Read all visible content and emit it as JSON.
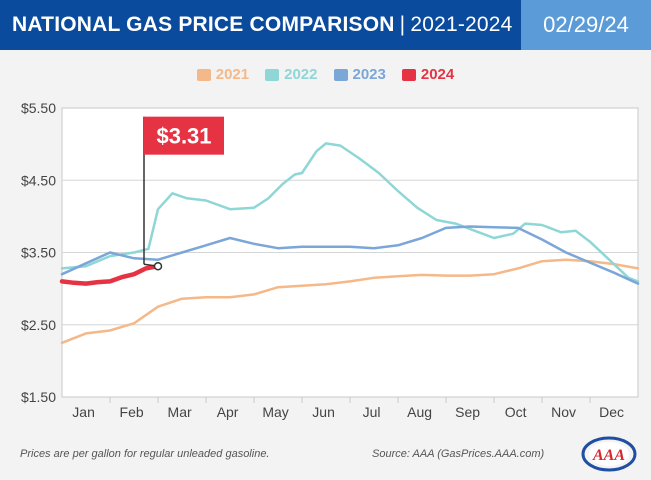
{
  "header": {
    "title": "NATIONAL GAS PRICE COMPARISON",
    "separator": "|",
    "years": "2021-2024",
    "date": "02/29/24"
  },
  "colors": {
    "2021": "#f5b888",
    "2022": "#8fd6d6",
    "2023": "#7aa6d8",
    "2024": "#e53344",
    "header": "#0a4b9e",
    "date_box": "#5a9bd8"
  },
  "callout": {
    "label": "$3.31"
  },
  "footer": {
    "note": "Prices are per gallon for regular unleaded gasoline.",
    "source": "Source: AAA (GasPrices.AAA.com)",
    "logo_text": "AAA"
  },
  "chart_data": {
    "type": "line",
    "title": "NATIONAL GAS PRICE COMPARISON | 2021-2024",
    "categories": [
      "Jan",
      "Feb",
      "Mar",
      "Apr",
      "May",
      "Jun",
      "Jul",
      "Aug",
      "Sep",
      "Oct",
      "Nov",
      "Dec"
    ],
    "yticks": [
      "$5.50",
      "$4.50",
      "$3.50",
      "$2.50",
      "$1.50"
    ],
    "ylim": [
      1.5,
      5.5
    ],
    "xlim": [
      0,
      12
    ],
    "series": [
      {
        "name": "2021",
        "x": [
          0,
          0.5,
          1,
          1.5,
          2,
          2.5,
          3,
          3.5,
          4,
          4.5,
          5,
          5.5,
          6,
          6.5,
          7,
          7.5,
          8,
          8.5,
          9,
          9.5,
          10,
          10.5,
          11,
          11.5,
          12
        ],
        "values": [
          2.25,
          2.38,
          2.42,
          2.52,
          2.75,
          2.86,
          2.88,
          2.88,
          2.92,
          3.02,
          3.04,
          3.06,
          3.1,
          3.15,
          3.17,
          3.19,
          3.18,
          3.18,
          3.2,
          3.28,
          3.38,
          3.4,
          3.38,
          3.34,
          3.28
        ]
      },
      {
        "name": "2022",
        "x": [
          0,
          0.5,
          1,
          1.5,
          1.8,
          2.0,
          2.3,
          2.6,
          3,
          3.5,
          4,
          4.3,
          4.6,
          4.85,
          5,
          5.3,
          5.5,
          5.8,
          6.2,
          6.6,
          7,
          7.4,
          7.8,
          8.2,
          8.6,
          9,
          9.4,
          9.65,
          10,
          10.4,
          10.7,
          11,
          11.4,
          11.8,
          12
        ],
        "values": [
          3.28,
          3.31,
          3.45,
          3.5,
          3.55,
          4.1,
          4.32,
          4.25,
          4.22,
          4.1,
          4.12,
          4.25,
          4.45,
          4.58,
          4.6,
          4.9,
          5.01,
          4.98,
          4.8,
          4.6,
          4.35,
          4.12,
          3.95,
          3.9,
          3.8,
          3.7,
          3.76,
          3.9,
          3.88,
          3.78,
          3.8,
          3.65,
          3.4,
          3.15,
          3.1
        ]
      },
      {
        "name": "2023",
        "x": [
          0,
          0.5,
          1,
          1.5,
          2,
          2.5,
          3,
          3.5,
          4,
          4.5,
          5,
          5.5,
          6,
          6.5,
          7,
          7.5,
          8,
          8.5,
          9,
          9.5,
          10,
          10.5,
          11,
          11.5,
          12
        ],
        "values": [
          3.2,
          3.35,
          3.5,
          3.42,
          3.4,
          3.5,
          3.6,
          3.7,
          3.62,
          3.56,
          3.58,
          3.58,
          3.58,
          3.56,
          3.6,
          3.7,
          3.84,
          3.86,
          3.85,
          3.84,
          3.68,
          3.5,
          3.36,
          3.22,
          3.07
        ]
      },
      {
        "name": "2024",
        "x": [
          0,
          0.25,
          0.5,
          0.75,
          1,
          1.25,
          1.5,
          1.75,
          2.0
        ],
        "values": [
          3.1,
          3.08,
          3.07,
          3.09,
          3.1,
          3.16,
          3.2,
          3.28,
          3.31
        ]
      }
    ],
    "annotation": {
      "text": "$3.31",
      "x": 2.0,
      "y": 3.31
    },
    "legend": "top-center",
    "grid": true,
    "note": "Prices are per gallon for regular unleaded gasoline.",
    "source": "Source: AAA (GasPrices.AAA.com)"
  }
}
